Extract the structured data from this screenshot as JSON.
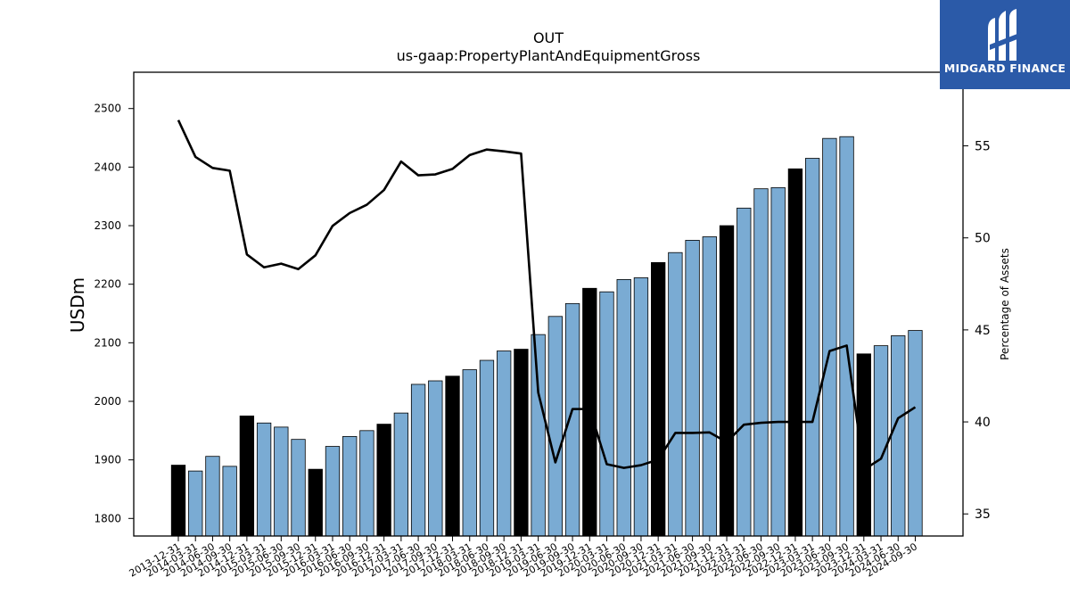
{
  "brand": {
    "name": "MIDGARD FINANCE",
    "logo_icon": "midgard-logo-icon",
    "color": "#2b5aa8"
  },
  "chart_data": {
    "type": "bar",
    "title": "OUT",
    "subtitle": "us-gaap:PropertyPlantAndEquipmentGross",
    "ylabel": "USDm",
    "y2label": "Percentage of Assets",
    "ylim": [
      1770,
      2562
    ],
    "y2lim": [
      33.8,
      59.0
    ],
    "yticks": [
      1800,
      1900,
      2000,
      2100,
      2200,
      2300,
      2400,
      2500
    ],
    "y2ticks": [
      35,
      40,
      45,
      50,
      55
    ],
    "grid": false,
    "colors": {
      "bar_regular": "#7aabd3",
      "bar_year_end": "#000000",
      "line": "#000000"
    },
    "categories": [
      "2013-12-31",
      "2014-03-31",
      "2014-06-30",
      "2014-09-30",
      "2014-12-31",
      "2015-03-31",
      "2015-06-30",
      "2015-09-30",
      "2015-12-31",
      "2016-03-31",
      "2016-06-30",
      "2016-09-30",
      "2016-12-31",
      "2017-03-31",
      "2017-06-30",
      "2017-09-30",
      "2017-12-31",
      "2018-03-31",
      "2018-06-30",
      "2018-09-30",
      "2018-12-31",
      "2019-03-31",
      "2019-06-30",
      "2019-09-30",
      "2019-12-31",
      "2020-03-31",
      "2020-06-30",
      "2020-09-30",
      "2020-12-31",
      "2021-03-31",
      "2021-06-30",
      "2021-09-30",
      "2021-12-31",
      "2022-03-31",
      "2022-06-30",
      "2022-09-30",
      "2022-12-31",
      "2023-03-31",
      "2023-06-30",
      "2023-09-30",
      "2023-12-31",
      "2024-03-31",
      "2024-06-30",
      "2024-09-30"
    ],
    "series": [
      {
        "type": "bar",
        "axis": "left",
        "values": [
          1891,
          1881,
          1906,
          1889,
          1975,
          1963,
          1956,
          1935,
          1884,
          1923,
          1940,
          1950,
          1961,
          1980,
          2029,
          2035,
          2043,
          2054,
          2070,
          2086,
          2089,
          2114,
          2145,
          2167,
          2193,
          2187,
          2208,
          2211,
          2237,
          2254,
          2275,
          2281,
          2300,
          2330,
          2363,
          2365,
          2397,
          2415,
          2449,
          2452,
          2081,
          2095,
          2112,
          2121
        ]
      },
      {
        "type": "line",
        "axis": "right",
        "values": [
          56.4,
          54.4,
          53.8,
          53.65,
          49.1,
          48.4,
          48.6,
          48.3,
          49.05,
          50.65,
          51.35,
          51.8,
          52.6,
          54.15,
          53.4,
          53.45,
          53.75,
          54.5,
          54.8,
          54.7,
          54.58,
          41.6,
          37.8,
          40.7,
          40.7,
          37.7,
          37.5,
          37.65,
          37.95,
          39.4,
          39.4,
          39.43,
          38.9,
          39.85,
          39.95,
          40.0,
          40.0,
          40.0,
          43.85,
          44.15,
          37.4,
          38.0,
          40.2,
          40.8
        ]
      }
    ]
  }
}
